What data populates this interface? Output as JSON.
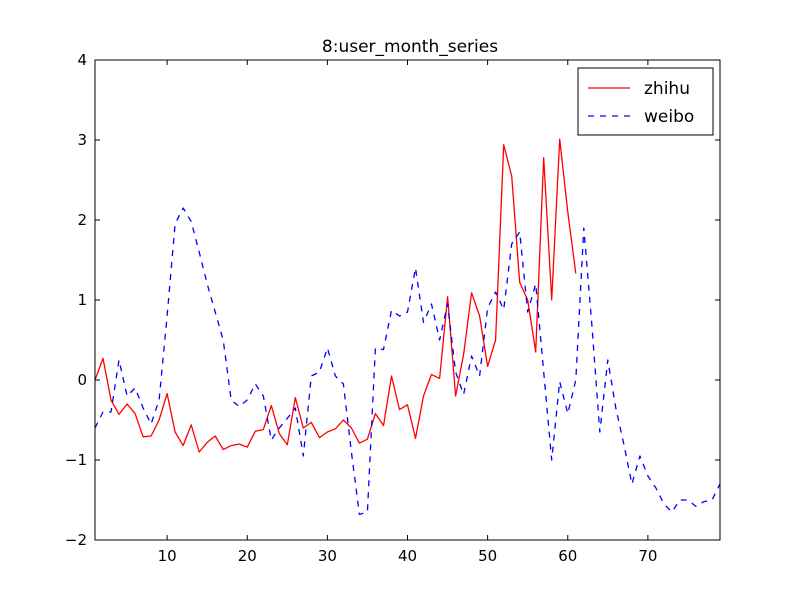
{
  "chart_data": {
    "type": "line",
    "title": "8:user_month_series",
    "xlabel": "",
    "ylabel": "",
    "xlim": [
      1,
      79
    ],
    "ylim": [
      -2,
      4
    ],
    "xticks": [
      10,
      20,
      30,
      40,
      50,
      60,
      70
    ],
    "yticks": [
      -2,
      -1,
      0,
      1,
      2,
      3,
      4
    ],
    "xtick_labels": [
      "10",
      "20",
      "30",
      "40",
      "50",
      "60",
      "70"
    ],
    "ytick_labels": [
      "−2",
      "−1",
      "0",
      "1",
      "2",
      "3",
      "4"
    ],
    "grid": false,
    "legend_position": "top-right",
    "series": [
      {
        "name": "zhihu",
        "color": "#ff0000",
        "style": "solid",
        "x": [
          1,
          2,
          3,
          4,
          5,
          6,
          7,
          8,
          9,
          10,
          11,
          12,
          13,
          14,
          15,
          16,
          17,
          18,
          19,
          20,
          21,
          22,
          23,
          24,
          25,
          26,
          27,
          28,
          29,
          30,
          31,
          32,
          33,
          34,
          35,
          36,
          37,
          38,
          39,
          40,
          41,
          42,
          43,
          44,
          45,
          46,
          47,
          48,
          49,
          50,
          51,
          52,
          53,
          54,
          55,
          56,
          57,
          58,
          59,
          60,
          61
        ],
        "y": [
          0.0,
          0.27,
          -0.25,
          -0.43,
          -0.3,
          -0.42,
          -0.71,
          -0.7,
          -0.5,
          -0.17,
          -0.65,
          -0.82,
          -0.56,
          -0.9,
          -0.78,
          -0.7,
          -0.87,
          -0.82,
          -0.8,
          -0.84,
          -0.64,
          -0.62,
          -0.32,
          -0.67,
          -0.81,
          -0.22,
          -0.6,
          -0.53,
          -0.72,
          -0.65,
          -0.61,
          -0.5,
          -0.6,
          -0.79,
          -0.74,
          -0.42,
          -0.57,
          0.05,
          -0.37,
          -0.31,
          -0.73,
          -0.2,
          0.07,
          0.02,
          1.04,
          -0.2,
          0.32,
          1.09,
          0.8,
          0.17,
          0.5,
          2.94,
          2.55,
          1.22,
          1.0,
          0.35,
          2.78,
          1.0,
          3.01,
          2.1,
          1.33
        ]
      },
      {
        "name": "weibo",
        "color": "#0000ff",
        "style": "dashed",
        "x": [
          1,
          2,
          3,
          4,
          5,
          6,
          7,
          8,
          9,
          10,
          11,
          12,
          13,
          14,
          15,
          16,
          17,
          18,
          19,
          20,
          21,
          22,
          23,
          24,
          25,
          26,
          27,
          28,
          29,
          30,
          31,
          32,
          33,
          34,
          35,
          36,
          37,
          38,
          39,
          40,
          41,
          42,
          43,
          44,
          45,
          46,
          47,
          48,
          49,
          50,
          51,
          52,
          53,
          54,
          55,
          56,
          57,
          58,
          59,
          60,
          61,
          62,
          63,
          64,
          65,
          66,
          67,
          68,
          69,
          70,
          71,
          72,
          73,
          74,
          75,
          76,
          77,
          78,
          79
        ],
        "y": [
          -0.6,
          -0.4,
          -0.4,
          0.25,
          -0.2,
          -0.1,
          -0.35,
          -0.55,
          -0.25,
          0.8,
          1.95,
          2.15,
          1.98,
          1.6,
          1.2,
          0.85,
          0.5,
          -0.25,
          -0.33,
          -0.25,
          -0.05,
          -0.2,
          -0.75,
          -0.6,
          -0.48,
          -0.35,
          -0.95,
          0.05,
          0.1,
          0.4,
          0.05,
          -0.05,
          -0.9,
          -1.68,
          -1.65,
          0.4,
          0.38,
          0.87,
          0.8,
          0.85,
          1.4,
          0.72,
          0.95,
          0.5,
          0.95,
          0.1,
          -0.18,
          0.3,
          0.05,
          0.9,
          1.1,
          0.88,
          1.7,
          1.85,
          0.85,
          1.2,
          0.1,
          -1.0,
          -0.02,
          -0.42,
          0.0,
          1.9,
          0.7,
          -0.65,
          0.25,
          -0.35,
          -0.8,
          -1.3,
          -0.95,
          -1.2,
          -1.35,
          -1.55,
          -1.65,
          -1.5,
          -1.5,
          -1.58,
          -1.52,
          -1.5,
          -1.3
        ]
      }
    ]
  }
}
